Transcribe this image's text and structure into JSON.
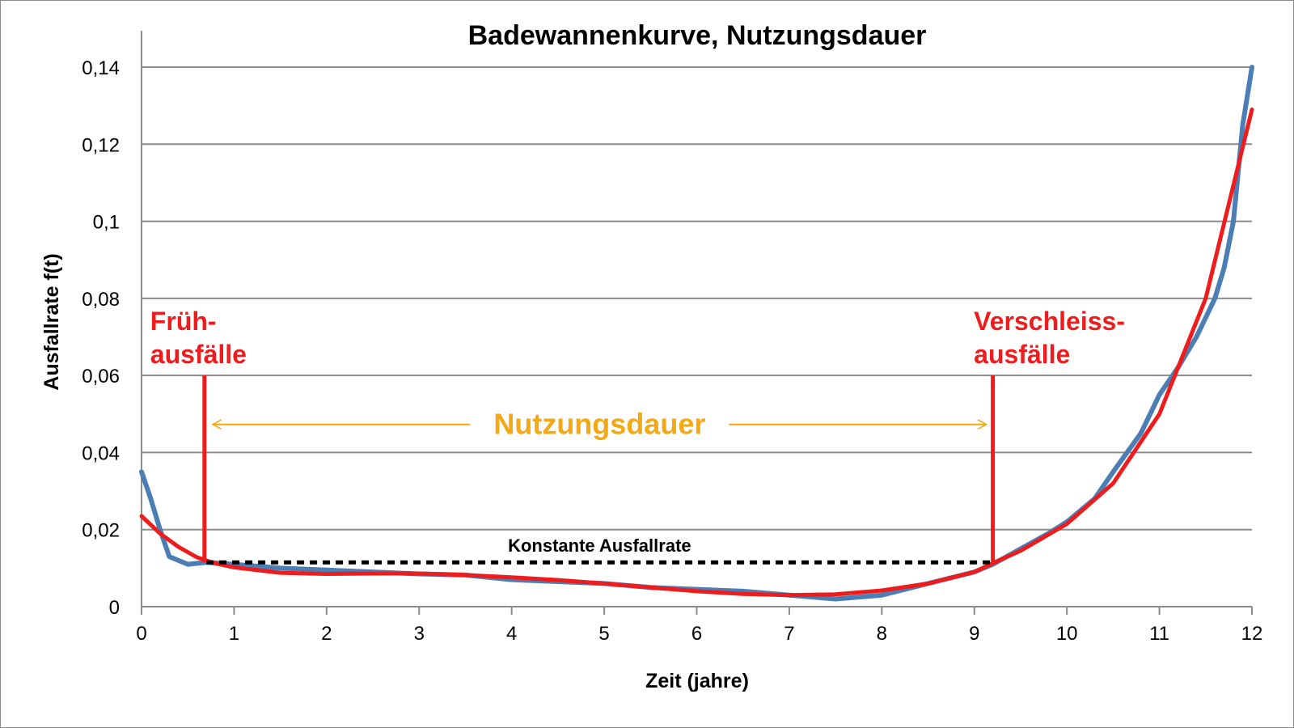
{
  "chart_data": {
    "type": "line",
    "title": "Badewannenkurve, Nutzungsdauer",
    "xlabel": "Zeit (jahre)",
    "ylabel": "Ausfallrate f(t)",
    "xlim": [
      0,
      12
    ],
    "ylim": [
      0,
      0.14
    ],
    "x_ticks": [
      "0",
      "1",
      "2",
      "3",
      "4",
      "5",
      "6",
      "7",
      "8",
      "9",
      "10",
      "11",
      "12"
    ],
    "y_ticks": [
      {
        "value": 0,
        "label": "0"
      },
      {
        "value": 0.02,
        "label": "0,02"
      },
      {
        "value": 0.04,
        "label": "0,04"
      },
      {
        "value": 0.06,
        "label": "0,06"
      },
      {
        "value": 0.08,
        "label": "0,08"
      },
      {
        "value": 0.1,
        "label": "0,1"
      },
      {
        "value": 0.12,
        "label": "0,12"
      },
      {
        "value": 0.14,
        "label": "0,14"
      }
    ],
    "grid": "horizontal",
    "series": [
      {
        "color": "#4a7eb4",
        "x": [
          0,
          0.1,
          0.2,
          0.3,
          0.5,
          0.7,
          1.0,
          1.5,
          2.0,
          2.5,
          3.0,
          3.5,
          4.0,
          4.5,
          5.0,
          5.5,
          6.0,
          6.5,
          7.0,
          7.5,
          8.0,
          8.5,
          9.0,
          9.2,
          9.5,
          9.8,
          10.0,
          10.3,
          10.5,
          10.8,
          11.0,
          11.2,
          11.4,
          11.6,
          11.7,
          11.8,
          11.9,
          12.0
        ],
        "y": [
          0.035,
          0.028,
          0.02,
          0.013,
          0.011,
          0.0115,
          0.011,
          0.01,
          0.0095,
          0.009,
          0.0085,
          0.0082,
          0.007,
          0.0065,
          0.006,
          0.005,
          0.0045,
          0.004,
          0.003,
          0.002,
          0.003,
          0.006,
          0.009,
          0.011,
          0.015,
          0.019,
          0.022,
          0.028,
          0.035,
          0.045,
          0.055,
          0.062,
          0.07,
          0.08,
          0.088,
          0.1,
          0.125,
          0.14
        ]
      },
      {
        "color": "#ee1c1c",
        "x": [
          0,
          0.2,
          0.4,
          0.6,
          0.8,
          1.0,
          1.5,
          2.0,
          2.5,
          3.0,
          3.5,
          4.0,
          4.5,
          5.0,
          5.5,
          6.0,
          6.5,
          7.0,
          7.5,
          8.0,
          8.5,
          9.0,
          9.2,
          9.5,
          10.0,
          10.5,
          11.0,
          11.5,
          12.0
        ],
        "y": [
          0.0235,
          0.019,
          0.0155,
          0.0128,
          0.0112,
          0.0102,
          0.0088,
          0.0085,
          0.0086,
          0.0086,
          0.0082,
          0.0076,
          0.0069,
          0.006,
          0.005,
          0.004,
          0.0033,
          0.003,
          0.0032,
          0.0042,
          0.006,
          0.009,
          0.0113,
          0.0145,
          0.0215,
          0.032,
          0.05,
          0.08,
          0.129
        ]
      }
    ],
    "constant_rate": {
      "label": "Konstante Ausfallrate",
      "value": 0.0115,
      "x_from": 0.7,
      "x_to": 9.2
    },
    "phases": [
      {
        "lines": [
          "Früh-",
          "ausfälle"
        ],
        "x": 0.68,
        "line_from": 0.0115,
        "line_to": 0.06
      },
      {
        "lines": [
          "Verschleiss-",
          "ausfälle"
        ],
        "x": 9.2,
        "line_from": 0.0115,
        "line_to": 0.06
      }
    ],
    "useful_life": {
      "label": "Nutzungsdauer",
      "x_from": 0.7,
      "x_to": 9.2,
      "y": 0.0475
    },
    "colors": {
      "grid": "#8c8c8c",
      "measured": "#4a7eb4",
      "fit": "#ee1c1c",
      "span": "#f4a814",
      "constant": "#000000"
    }
  }
}
